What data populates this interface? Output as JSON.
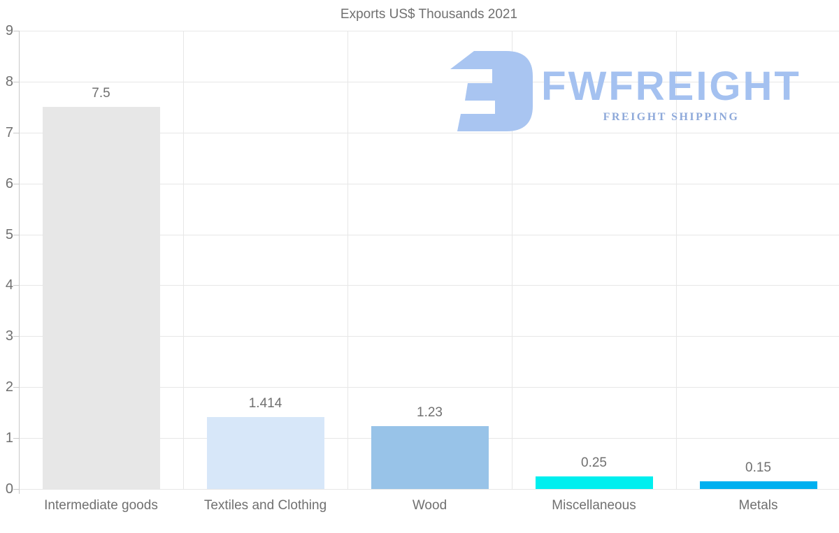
{
  "chart_data": {
    "type": "bar",
    "title": "Exports US$ Thousands 2021",
    "categories": [
      "Intermediate goods",
      "Textiles and Clothing",
      "Wood",
      "Miscellaneous",
      "Metals"
    ],
    "values": [
      7.5,
      1.414,
      1.23,
      0.25,
      0.15
    ],
    "value_labels": [
      "7.5",
      "1.414",
      "1.23",
      "0.25",
      "0.15"
    ],
    "bar_colors": [
      "#e7e7e7",
      "#d7e7f9",
      "#98c3e8",
      "#00efef",
      "#00b0f0"
    ],
    "xlabel": "",
    "ylabel": "",
    "ylim": [
      0,
      9
    ],
    "yticks": [
      0,
      1,
      2,
      3,
      4,
      5,
      6,
      7,
      8,
      9
    ],
    "grid": true,
    "legend_position": "none",
    "text_color": "#707070",
    "grid_color": "#e7e7e7",
    "axis_color": "#c9c9c9"
  },
  "logo": {
    "brand": "FWFREIGHT",
    "tagline": "FREIGHT SHIPPING",
    "icon": "fw-monogram-icon",
    "icon_color": "#a9c5f1",
    "wordmark_color": "#a4c1f0",
    "tagline_color": "#8ea9da"
  }
}
